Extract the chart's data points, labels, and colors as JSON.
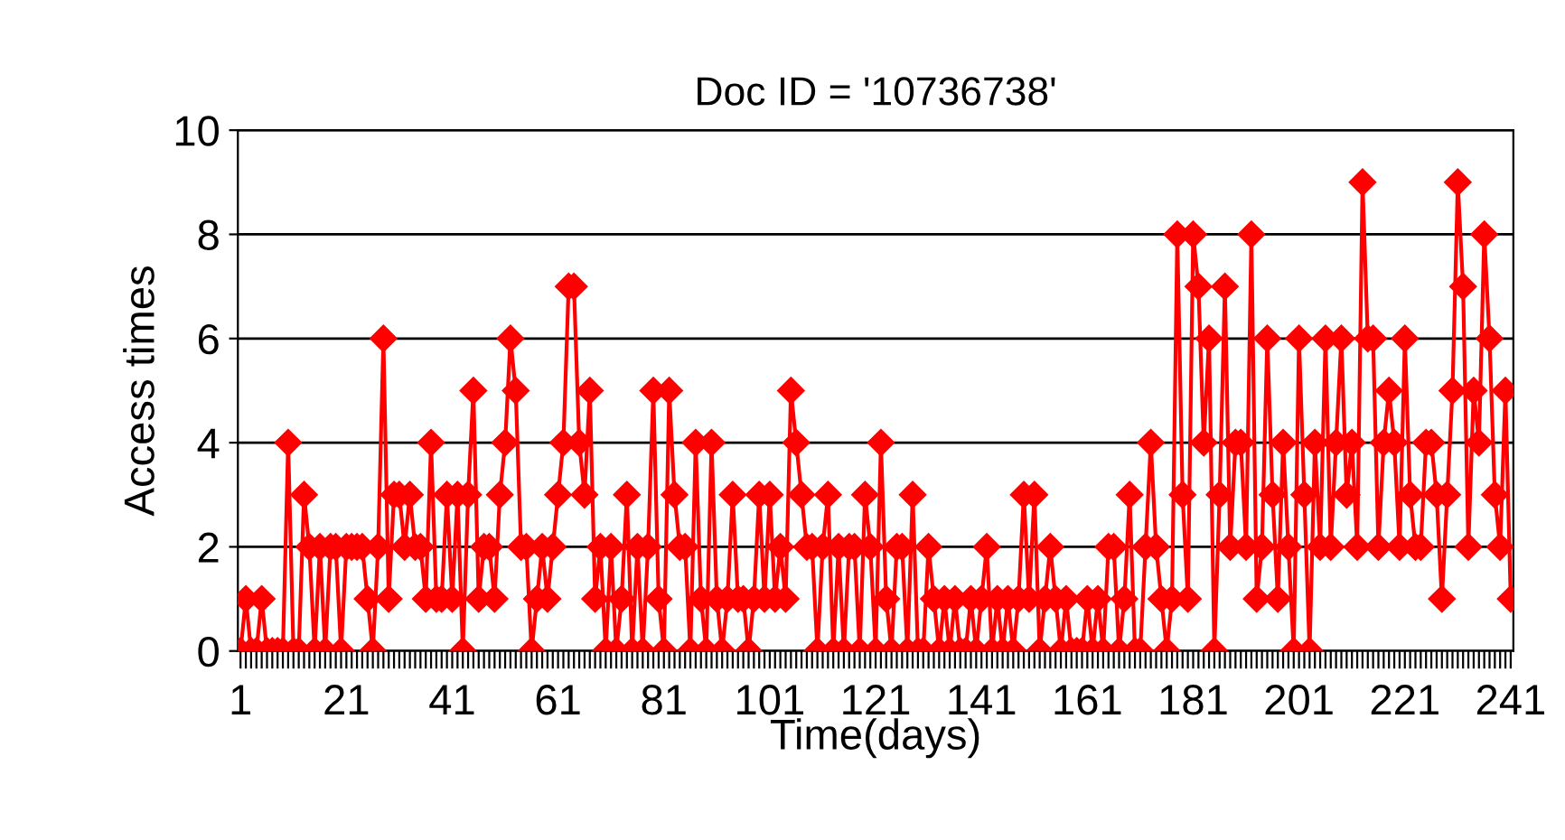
{
  "chart_data": {
    "type": "line",
    "title": "Doc ID = '10736738'",
    "xlabel": "Time(days)",
    "ylabel": "Access times",
    "categories": [
      "1",
      null,
      null,
      null,
      null,
      null,
      null,
      null,
      null,
      null,
      null,
      null,
      null,
      null,
      null,
      null,
      null,
      null,
      null,
      null,
      "21",
      null,
      null,
      null,
      null,
      null,
      null,
      null,
      null,
      null,
      null,
      null,
      null,
      null,
      null,
      null,
      null,
      null,
      null,
      null,
      "41",
      null,
      null,
      null,
      null,
      null,
      null,
      null,
      null,
      null,
      null,
      null,
      null,
      null,
      null,
      null,
      null,
      null,
      null,
      null,
      "61",
      null,
      null,
      null,
      null,
      null,
      null,
      null,
      null,
      null,
      null,
      null,
      null,
      null,
      null,
      null,
      null,
      null,
      null,
      null,
      "81",
      null,
      null,
      null,
      null,
      null,
      null,
      null,
      null,
      null,
      null,
      null,
      null,
      null,
      null,
      null,
      null,
      null,
      null,
      null,
      "101",
      null,
      null,
      null,
      null,
      null,
      null,
      null,
      null,
      null,
      null,
      null,
      null,
      null,
      null,
      null,
      null,
      null,
      null,
      null,
      "121",
      null,
      null,
      null,
      null,
      null,
      null,
      null,
      null,
      null,
      null,
      null,
      null,
      null,
      null,
      null,
      null,
      null,
      null,
      null,
      "141",
      null,
      null,
      null,
      null,
      null,
      null,
      null,
      null,
      null,
      null,
      null,
      null,
      null,
      null,
      null,
      null,
      null,
      null,
      null,
      "161",
      null,
      null,
      null,
      null,
      null,
      null,
      null,
      null,
      null,
      null,
      null,
      null,
      null,
      null,
      null,
      null,
      null,
      null,
      null,
      "181",
      null,
      null,
      null,
      null,
      null,
      null,
      null,
      null,
      null,
      null,
      null,
      null,
      null,
      null,
      null,
      null,
      null,
      null,
      null,
      "201",
      null,
      null,
      null,
      null,
      null,
      null,
      null,
      null,
      null,
      null,
      null,
      null,
      null,
      null,
      null,
      null,
      null,
      null,
      null,
      "221",
      null,
      null,
      null,
      null,
      null,
      null,
      null,
      null,
      null,
      null,
      null,
      null,
      null,
      null,
      null,
      null,
      null,
      null,
      null,
      "241"
    ],
    "series": [
      {
        "color": "#ff0000",
        "values": [
          0,
          1,
          0,
          0,
          1,
          0,
          0,
          0,
          0,
          4,
          0,
          0,
          3,
          2,
          0,
          2,
          0,
          2,
          2,
          0,
          2,
          2,
          2,
          2,
          1,
          0,
          2,
          6,
          1,
          3,
          3,
          2,
          3,
          2,
          2,
          1,
          4,
          1,
          1,
          3,
          1,
          3,
          0,
          3,
          5,
          1,
          2,
          2,
          1,
          3,
          4,
          6,
          5,
          2,
          2,
          0,
          1,
          2,
          1,
          2,
          3,
          4,
          7,
          7,
          4,
          3,
          5,
          1,
          2,
          0,
          2,
          0,
          1,
          3,
          0,
          2,
          0,
          2,
          5,
          1,
          0,
          5,
          3,
          2,
          2,
          0,
          4,
          1,
          0,
          4,
          1,
          0,
          1,
          3,
          1,
          1,
          0,
          1,
          3,
          1,
          3,
          1,
          2,
          1,
          5,
          4,
          3,
          2,
          2,
          0,
          2,
          3,
          0,
          2,
          0,
          2,
          2,
          0,
          3,
          2,
          0,
          4,
          1,
          0,
          2,
          2,
          0,
          3,
          0,
          0,
          2,
          1,
          0,
          1,
          0,
          1,
          0,
          0,
          1,
          0,
          1,
          2,
          0,
          1,
          0,
          1,
          0,
          1,
          3,
          1,
          3,
          0,
          1,
          2,
          1,
          0,
          1,
          0,
          0,
          0,
          1,
          0,
          1,
          0,
          2,
          2,
          0,
          1,
          3,
          0,
          0,
          2,
          4,
          2,
          1,
          0,
          1,
          8,
          3,
          1,
          8,
          7,
          4,
          6,
          0,
          3,
          7,
          2,
          4,
          4,
          2,
          8,
          1,
          2,
          6,
          3,
          1,
          4,
          2,
          0,
          6,
          3,
          0,
          4,
          2,
          6,
          2,
          4,
          6,
          3,
          4,
          2,
          9,
          6,
          6,
          2,
          4,
          5,
          4,
          2,
          6,
          3,
          2,
          2,
          4,
          4,
          3,
          1,
          3,
          5,
          9,
          7,
          2,
          5,
          4,
          8,
          6,
          3,
          2,
          5,
          1
        ]
      }
    ],
    "ylim": [
      0,
      10
    ],
    "yticks": [
      0,
      2,
      4,
      6,
      8,
      10
    ],
    "grid": "y",
    "marker": "diamond",
    "line_style": "solid"
  }
}
